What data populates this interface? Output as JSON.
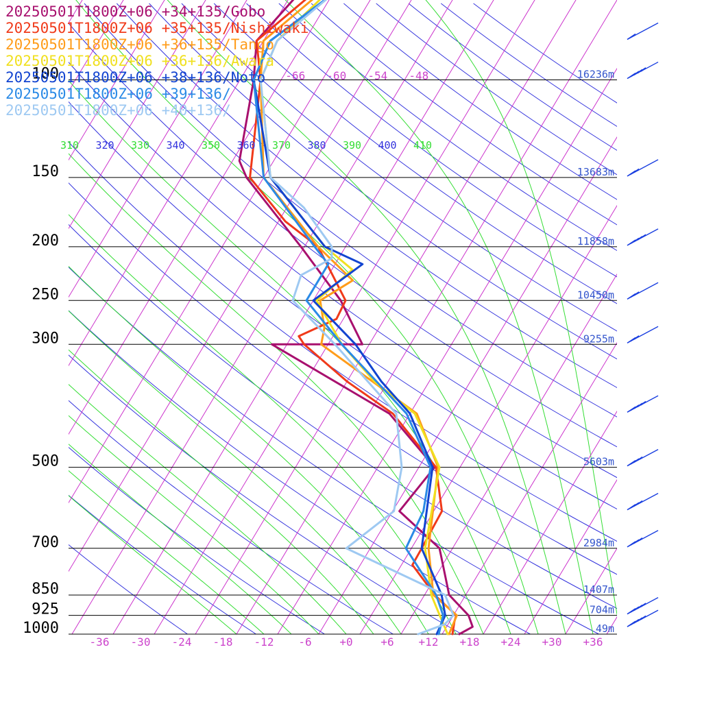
{
  "chart_data": {
    "type": "line",
    "title": "",
    "xlabel": "",
    "ylabel": "",
    "xlim": [
      -42,
      42
    ],
    "temperature_ticks": [
      -36,
      -30,
      -24,
      -18,
      -12,
      -6,
      0,
      6,
      12,
      18,
      24,
      30,
      36
    ],
    "temperature_tick_labels": [
      "-36",
      "-30",
      "-24",
      "-18",
      "-12",
      "-6",
      "+0",
      "+6",
      "+12",
      "+18",
      "+24",
      "+30",
      "+36"
    ],
    "pressure_levels": [
      100,
      150,
      200,
      250,
      300,
      500,
      700,
      850,
      925,
      1000
    ],
    "pressure_labels": [
      "100",
      "150",
      "200",
      "250",
      "300",
      "500",
      "700",
      "850",
      "925",
      "1000"
    ],
    "height_labels": [
      "16236m",
      "13683m",
      "11858m",
      "10450m",
      "9255m",
      "5603m",
      "2984m",
      "1407m",
      "704m",
      "49m"
    ],
    "upper_temp_labels": [
      "-66",
      "-60",
      "-54",
      "-48"
    ],
    "theta_labels": [
      "310",
      "320",
      "330",
      "340",
      "350",
      "360",
      "370",
      "380",
      "390",
      "400",
      "410"
    ],
    "grid": true,
    "legend_position": "top-left",
    "colors": {
      "isobar": "#000000",
      "isotherm": "#cc33cc",
      "dry_adiabat": "#3333dd",
      "moist_adiabat": "#33dd33",
      "pressure_label": "#000000",
      "height_label": "#3355cc",
      "temp_label": "#cc44cc",
      "wind_barb": "#1a3fe0"
    },
    "series": [
      {
        "name": "20250501T1800Z+06 +34+135/Gobo",
        "color": "#a8106e",
        "points": [
          [
            1000,
            16.5
          ],
          [
            970,
            17.8
          ],
          [
            925,
            16.2
          ],
          [
            850,
            11.6
          ],
          [
            700,
            6.1
          ],
          [
            600,
            -3
          ],
          [
            500,
            -1.7
          ],
          [
            400,
            -13
          ],
          [
            300,
            -36.2
          ],
          [
            300,
            -23
          ],
          [
            250,
            -30
          ],
          [
            200,
            -40.5
          ],
          [
            150,
            -54.5
          ],
          [
            140,
            -57
          ],
          [
            100,
            -62
          ],
          [
            85,
            -65
          ],
          [
            70,
            -63
          ],
          [
            50,
            -60
          ]
        ]
      },
      {
        "name": "20250501T1800Z+06 +35+135/Nishiwaki",
        "color": "#f03a1a",
        "points": [
          [
            1000,
            15.5
          ],
          [
            950,
            14.7
          ],
          [
            925,
            14.4
          ],
          [
            850,
            9.5
          ],
          [
            750,
            3.6
          ],
          [
            700,
            3.5
          ],
          [
            600,
            3.2
          ],
          [
            500,
            -1.5
          ],
          [
            400,
            -12.5
          ],
          [
            350,
            -22
          ],
          [
            300,
            -31.5
          ],
          [
            290,
            -33
          ],
          [
            270,
            -29
          ],
          [
            250,
            -29.3
          ],
          [
            200,
            -38
          ],
          [
            180,
            -45
          ],
          [
            150,
            -54
          ],
          [
            100,
            -61
          ],
          [
            85,
            -65
          ],
          [
            70,
            -61
          ],
          [
            50,
            -58
          ]
        ]
      },
      {
        "name": "20250501T1800Z+06 +36+135/Tango",
        "color": "#ff9c1a",
        "points": [
          [
            1000,
            15
          ],
          [
            925,
            14.5
          ],
          [
            850,
            9.3
          ],
          [
            700,
            4.5
          ],
          [
            500,
            -1.2
          ],
          [
            400,
            -9
          ],
          [
            300,
            -29
          ],
          [
            280,
            -30
          ],
          [
            250,
            -33
          ],
          [
            230,
            -30
          ],
          [
            200,
            -38
          ],
          [
            150,
            -52
          ],
          [
            100,
            -61
          ],
          [
            85,
            -64
          ],
          [
            70,
            -60
          ],
          [
            50,
            -58
          ]
        ]
      },
      {
        "name": "20250501T1800Z+06 +36+136/Awara",
        "color": "#f0e020",
        "points": [
          [
            1000,
            14.8
          ],
          [
            925,
            12
          ],
          [
            850,
            9
          ],
          [
            700,
            4
          ],
          [
            500,
            -1
          ],
          [
            400,
            -9.3
          ],
          [
            350,
            -18
          ],
          [
            300,
            -26
          ],
          [
            250,
            -33.5
          ],
          [
            220,
            -31
          ],
          [
            200,
            -37
          ],
          [
            150,
            -51
          ],
          [
            100,
            -61
          ],
          [
            85,
            -62
          ],
          [
            70,
            -59
          ],
          [
            50,
            -57
          ]
        ]
      },
      {
        "name": "20250501T1800Z+06 +38+136/Noto",
        "color": "#1244d0",
        "points": [
          [
            1000,
            13.2
          ],
          [
            925,
            12.8
          ],
          [
            850,
            10.5
          ],
          [
            700,
            3.5
          ],
          [
            500,
            -2
          ],
          [
            400,
            -10
          ],
          [
            350,
            -17
          ],
          [
            300,
            -24
          ],
          [
            250,
            -34
          ],
          [
            215,
            -30
          ],
          [
            200,
            -37
          ],
          [
            150,
            -51
          ],
          [
            100,
            -62
          ],
          [
            85,
            -63
          ],
          [
            70,
            -58
          ],
          [
            50,
            -56
          ]
        ]
      },
      {
        "name": "20250501T1800Z+06 +39+136/",
        "color": "#2a8ae6",
        "points": [
          [
            1000,
            13.5
          ],
          [
            925,
            12.5
          ],
          [
            850,
            9.7
          ],
          [
            700,
            1.2
          ],
          [
            600,
            0.5
          ],
          [
            500,
            -2.3
          ],
          [
            400,
            -10.5
          ],
          [
            300,
            -26
          ],
          [
            250,
            -35
          ],
          [
            215,
            -35
          ],
          [
            200,
            -38.5
          ],
          [
            150,
            -52
          ],
          [
            100,
            -62
          ],
          [
            85,
            -63
          ],
          [
            70,
            -58
          ],
          [
            50,
            -56
          ]
        ]
      },
      {
        "name": "20250501T1800Z+06 +40+136/",
        "color": "#9ec9f2",
        "points": [
          [
            1000,
            10.5
          ],
          [
            960,
            13.5
          ],
          [
            925,
            14
          ],
          [
            850,
            11
          ],
          [
            700,
            -7.5
          ],
          [
            600,
            -3.8
          ],
          [
            500,
            -6.5
          ],
          [
            400,
            -12
          ],
          [
            300,
            -27
          ],
          [
            250,
            -37
          ],
          [
            225,
            -38
          ],
          [
            210,
            -35
          ],
          [
            200,
            -36
          ],
          [
            170,
            -43.5
          ],
          [
            150,
            -51
          ],
          [
            100,
            -61
          ],
          [
            85,
            -62
          ],
          [
            70,
            -58
          ],
          [
            50,
            -55
          ]
        ]
      }
    ],
    "wind_barbs": [
      {
        "pressure": 70,
        "speed_kt": 5
      },
      {
        "pressure": 85,
        "speed_kt": 10
      },
      {
        "pressure": 100,
        "speed_kt": 35
      },
      {
        "pressure": 150,
        "speed_kt": 15
      },
      {
        "pressure": 200,
        "speed_kt": 40
      },
      {
        "pressure": 250,
        "speed_kt": 15
      },
      {
        "pressure": 300,
        "speed_kt": 15
      },
      {
        "pressure": 400,
        "speed_kt": 35
      },
      {
        "pressure": 500,
        "speed_kt": 30
      },
      {
        "pressure": 600,
        "speed_kt": 30
      },
      {
        "pressure": 700,
        "speed_kt": 30
      },
      {
        "pressure": 925,
        "speed_kt": 35
      },
      {
        "pressure": 975,
        "speed_kt": 35
      }
    ]
  }
}
